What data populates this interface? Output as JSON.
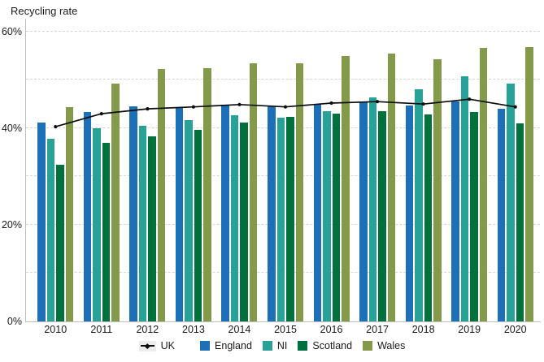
{
  "title": "Recycling rate",
  "chart_data": {
    "type": "bar",
    "title": "Recycling rate",
    "subtitle": "",
    "xlabel": "",
    "ylabel": "Recycling rate",
    "categories": [
      "2010",
      "2011",
      "2012",
      "2013",
      "2014",
      "2015",
      "2016",
      "2017",
      "2018",
      "2019",
      "2020"
    ],
    "series": [
      {
        "name": "UK",
        "type": "line",
        "color": "#0b0c0c",
        "values": [
          40.3,
          43.0,
          44.0,
          44.4,
          44.9,
          44.4,
          45.2,
          45.5,
          45.0,
          46.0,
          44.4
        ]
      },
      {
        "name": "England",
        "type": "bar",
        "color": "#1d70b8",
        "values": [
          41.2,
          43.4,
          44.5,
          44.3,
          44.9,
          44.6,
          45.0,
          45.3,
          44.7,
          45.5,
          44.0
        ]
      },
      {
        "name": "NI",
        "type": "bar",
        "color": "#28a197",
        "values": [
          37.8,
          40.0,
          40.5,
          41.7,
          42.6,
          42.1,
          43.5,
          46.4,
          48.0,
          50.8,
          49.2
        ]
      },
      {
        "name": "Scotland",
        "type": "bar",
        "color": "#00703c",
        "values": [
          32.5,
          37.0,
          38.3,
          39.7,
          41.1,
          42.3,
          43.0,
          43.5,
          42.9,
          43.4,
          41.0
        ]
      },
      {
        "name": "Wales",
        "type": "bar",
        "color": "#85994b",
        "values": [
          44.3,
          49.2,
          52.3,
          52.4,
          53.5,
          53.4,
          54.9,
          55.4,
          54.3,
          56.6,
          56.8
        ]
      }
    ],
    "ylim": [
      0,
      62.5
    ],
    "yticks": [
      {
        "value": 0,
        "label": "0%"
      },
      {
        "value": 20,
        "label": "20%"
      },
      {
        "value": 40,
        "label": "40%"
      },
      {
        "value": 60,
        "label": "60%"
      }
    ],
    "gridlines": [
      10,
      20,
      30,
      40,
      50,
      60
    ],
    "grid_style": "dashed",
    "legend_position": "bottom"
  },
  "legend": {
    "items": [
      {
        "label": "UK",
        "swatch": "line",
        "color": "#0b0c0c"
      },
      {
        "label": "England",
        "swatch": "square",
        "color": "#1d70b8"
      },
      {
        "label": "NI",
        "swatch": "square",
        "color": "#28a197"
      },
      {
        "label": "Scotland",
        "swatch": "square",
        "color": "#00703c"
      },
      {
        "label": "Wales",
        "swatch": "square",
        "color": "#85994b"
      }
    ]
  },
  "colors": {
    "background": "#ffffff",
    "grid": "#d6d6d6",
    "axis": "#bcbfc1",
    "text": "#1a1a1a"
  }
}
